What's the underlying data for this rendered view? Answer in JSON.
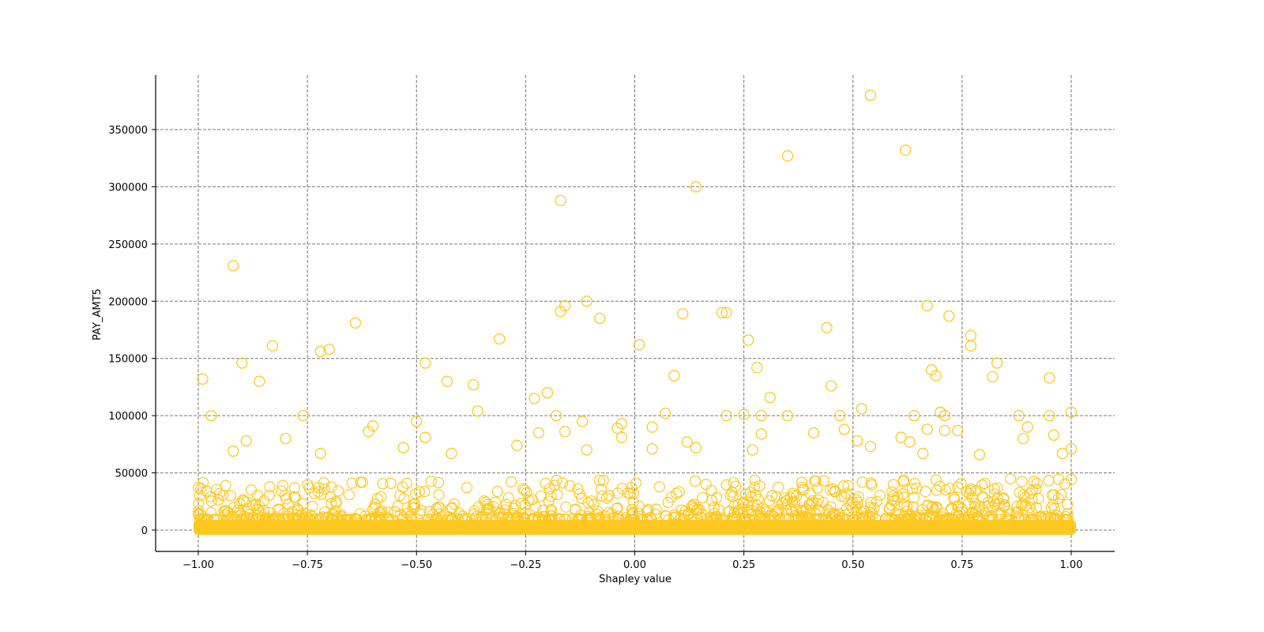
{
  "chart_data": {
    "type": "scatter",
    "title": "",
    "xlabel": "Shapley value",
    "ylabel": "PAY_AMT5",
    "xlim": [
      -1.1,
      1.1
    ],
    "ylim": [
      -18000,
      398000
    ],
    "xticks": [
      -1.0,
      -0.75,
      -0.5,
      -0.25,
      0.0,
      0.25,
      0.5,
      0.75,
      1.0
    ],
    "xtick_labels": [
      "−1.00",
      "−0.75",
      "−0.50",
      "−0.25",
      "0.00",
      "0.25",
      "0.50",
      "0.75",
      "1.00"
    ],
    "yticks": [
      0,
      50000,
      100000,
      150000,
      200000,
      250000,
      300000,
      350000
    ],
    "ytick_labels": [
      "0",
      "50000",
      "100000",
      "150000",
      "200000",
      "250000",
      "300000",
      "350000"
    ],
    "grid": true,
    "grid_style": "dashed",
    "marker": "hollow-circle",
    "marker_color": "#FFC820",
    "legend": null,
    "dense_band": {
      "x_range": [
        -1.0,
        1.0
      ],
      "y_range": [
        0,
        15000
      ],
      "note": "thousands of overlapping points forming a solid band near y=0"
    },
    "notable_points": [
      {
        "x": 0.54,
        "y": 380000
      },
      {
        "x": 0.62,
        "y": 332000
      },
      {
        "x": 0.35,
        "y": 327000
      },
      {
        "x": 0.14,
        "y": 300000
      },
      {
        "x": -0.17,
        "y": 288000
      },
      {
        "x": -0.92,
        "y": 231000
      },
      {
        "x": -0.11,
        "y": 200000
      },
      {
        "x": 0.67,
        "y": 196000
      },
      {
        "x": -0.16,
        "y": 196000
      },
      {
        "x": -0.17,
        "y": 191000
      },
      {
        "x": 0.2,
        "y": 190000
      },
      {
        "x": 0.21,
        "y": 190000
      },
      {
        "x": 0.11,
        "y": 189000
      },
      {
        "x": 0.72,
        "y": 187000
      },
      {
        "x": -0.08,
        "y": 185000
      },
      {
        "x": -0.64,
        "y": 181000
      },
      {
        "x": 0.44,
        "y": 177000
      },
      {
        "x": 0.77,
        "y": 170000
      },
      {
        "x": -0.31,
        "y": 167000
      },
      {
        "x": 0.26,
        "y": 166000
      },
      {
        "x": 0.01,
        "y": 162000
      },
      {
        "x": -0.83,
        "y": 161000
      },
      {
        "x": 0.77,
        "y": 161000
      },
      {
        "x": -0.7,
        "y": 158000
      },
      {
        "x": -0.72,
        "y": 156000
      },
      {
        "x": -0.9,
        "y": 146000
      },
      {
        "x": -0.48,
        "y": 146000
      },
      {
        "x": 0.83,
        "y": 146000
      },
      {
        "x": 0.28,
        "y": 142000
      },
      {
        "x": 0.68,
        "y": 140000
      },
      {
        "x": 0.69,
        "y": 135000
      },
      {
        "x": 0.09,
        "y": 135000
      },
      {
        "x": 0.82,
        "y": 134000
      },
      {
        "x": 0.95,
        "y": 133000
      },
      {
        "x": -0.99,
        "y": 132000
      },
      {
        "x": -0.86,
        "y": 130000
      },
      {
        "x": -0.43,
        "y": 130000
      },
      {
        "x": -0.37,
        "y": 127000
      },
      {
        "x": 0.45,
        "y": 126000
      },
      {
        "x": -0.2,
        "y": 120000
      },
      {
        "x": 0.31,
        "y": 116000
      },
      {
        "x": -0.23,
        "y": 115000
      },
      {
        "x": 0.52,
        "y": 106000
      },
      {
        "x": -0.36,
        "y": 104000
      },
      {
        "x": 0.7,
        "y": 103000
      },
      {
        "x": 1.0,
        "y": 103000
      },
      {
        "x": 0.07,
        "y": 102000
      },
      {
        "x": 0.25,
        "y": 101000
      },
      {
        "x": -0.97,
        "y": 100000
      },
      {
        "x": -0.76,
        "y": 100000
      },
      {
        "x": -0.18,
        "y": 100000
      },
      {
        "x": 0.21,
        "y": 100000
      },
      {
        "x": 0.29,
        "y": 100000
      },
      {
        "x": 0.35,
        "y": 100000
      },
      {
        "x": 0.47,
        "y": 100000
      },
      {
        "x": 0.64,
        "y": 100000
      },
      {
        "x": 0.71,
        "y": 100000
      },
      {
        "x": 0.88,
        "y": 100000
      },
      {
        "x": 0.95,
        "y": 100000
      },
      {
        "x": -0.5,
        "y": 95000
      },
      {
        "x": -0.12,
        "y": 95000
      },
      {
        "x": -0.6,
        "y": 91000
      },
      {
        "x": -0.03,
        "y": 93000
      },
      {
        "x": 0.04,
        "y": 90000
      },
      {
        "x": 0.9,
        "y": 90000
      },
      {
        "x": -0.04,
        "y": 89000
      },
      {
        "x": 0.48,
        "y": 88000
      },
      {
        "x": 0.67,
        "y": 88000
      },
      {
        "x": 0.71,
        "y": 87000
      },
      {
        "x": 0.74,
        "y": 87000
      },
      {
        "x": -0.61,
        "y": 86000
      },
      {
        "x": -0.22,
        "y": 85000
      },
      {
        "x": -0.16,
        "y": 86000
      },
      {
        "x": 0.41,
        "y": 85000
      },
      {
        "x": 0.29,
        "y": 84000
      },
      {
        "x": 0.96,
        "y": 83000
      },
      {
        "x": -0.48,
        "y": 81000
      },
      {
        "x": -0.03,
        "y": 81000
      },
      {
        "x": 0.61,
        "y": 81000
      },
      {
        "x": 0.89,
        "y": 80000
      },
      {
        "x": -0.8,
        "y": 80000
      },
      {
        "x": -0.89,
        "y": 78000
      },
      {
        "x": 0.12,
        "y": 77000
      },
      {
        "x": 0.51,
        "y": 78000
      },
      {
        "x": 0.63,
        "y": 77000
      },
      {
        "x": -0.27,
        "y": 74000
      },
      {
        "x": -0.53,
        "y": 72000
      },
      {
        "x": 0.04,
        "y": 71000
      },
      {
        "x": 0.14,
        "y": 72000
      },
      {
        "x": 0.54,
        "y": 73000
      },
      {
        "x": 1.0,
        "y": 71000
      },
      {
        "x": -0.92,
        "y": 69000
      },
      {
        "x": -0.11,
        "y": 70000
      },
      {
        "x": 0.27,
        "y": 70000
      },
      {
        "x": -0.72,
        "y": 67000
      },
      {
        "x": -0.42,
        "y": 67000
      },
      {
        "x": 0.79,
        "y": 66000
      },
      {
        "x": 0.66,
        "y": 67000
      },
      {
        "x": 0.98,
        "y": 67000
      }
    ]
  },
  "axes": {
    "x_label": "Shapley value",
    "y_label": "PAY_AMT5"
  }
}
